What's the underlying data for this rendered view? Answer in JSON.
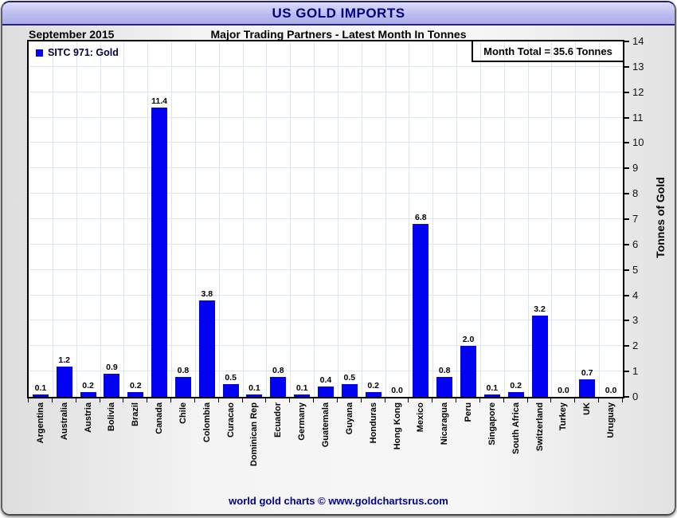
{
  "header": {
    "title": "US GOLD IMPORTS"
  },
  "subheader": {
    "date": "September 2015",
    "title": "Major Trading Partners - Latest Month In Tonnes"
  },
  "legend": {
    "label": "SITC 971: Gold"
  },
  "annotation": {
    "month_total": "Month Total = 35.6 Tonnes"
  },
  "footer": {
    "credit": "world gold charts © www.goldchartsrus.com"
  },
  "colors": {
    "bar": "#0202f2",
    "grid": "#d9e6f2",
    "header_bg": "#bcbcf0",
    "title_text": "#00007d",
    "footer_text": "#00008b",
    "plot_bg": "#ffffff"
  },
  "chart_data": {
    "type": "bar",
    "title": "US GOLD IMPORTS",
    "subtitle": "Major Trading Partners - Latest Month In Tonnes",
    "period": "September 2015",
    "series_name": "SITC 971: Gold",
    "categories": [
      "Argentina",
      "Australia",
      "Austria",
      "Bolivia",
      "Brazil",
      "Canada",
      "Chile",
      "Colombia",
      "Curacao",
      "Dominican Rep",
      "Ecuador",
      "Germany",
      "Guatemala",
      "Guyana",
      "Honduras",
      "Hong Kong",
      "Mexico",
      "Nicaragua",
      "Peru",
      "Singapore",
      "South Africa",
      "Switzerland",
      "Turkey",
      "UK",
      "Uruguay"
    ],
    "values": [
      0.1,
      1.2,
      0.2,
      0.9,
      0.2,
      11.4,
      0.8,
      3.8,
      0.5,
      0.1,
      0.8,
      0.1,
      0.4,
      0.5,
      0.2,
      0.0,
      6.8,
      0.8,
      2.0,
      0.1,
      0.2,
      3.2,
      0.0,
      0.7,
      0.0
    ],
    "xlabel": "",
    "ylabel": "Tonnes of Gold",
    "ylim": [
      0,
      14
    ],
    "yticks": [
      0,
      1,
      2,
      3,
      4,
      5,
      6,
      7,
      8,
      9,
      10,
      11,
      12,
      13,
      14
    ],
    "month_total": 35.6,
    "grid": true,
    "legend_position": "top-left",
    "value_labels_shown": true
  }
}
